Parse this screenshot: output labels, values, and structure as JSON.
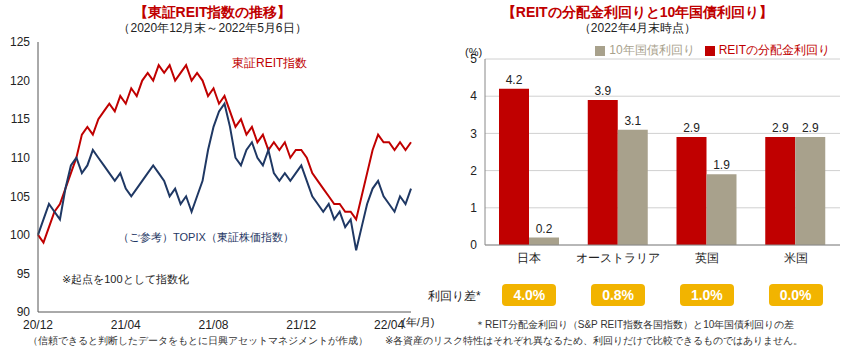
{
  "chart_data": [
    {
      "type": "line",
      "title": "【東証REIT指数の推移】",
      "subtitle": "（2020年12月末～2022年5月6日）",
      "x_label": "(年/月)",
      "categories": [
        "20/12",
        null,
        null,
        null,
        null,
        null,
        null,
        null,
        null,
        null,
        null,
        null,
        null,
        null,
        null,
        null,
        "21/04",
        null,
        null,
        null,
        null,
        null,
        null,
        null,
        null,
        null,
        null,
        null,
        null,
        null,
        null,
        null,
        "21/08",
        null,
        null,
        null,
        null,
        null,
        null,
        null,
        null,
        null,
        null,
        null,
        null,
        null,
        null,
        null,
        "21/12",
        null,
        null,
        null,
        null,
        null,
        null,
        null,
        null,
        null,
        null,
        null,
        null,
        null,
        null,
        null,
        "22/04",
        null,
        null,
        null,
        null
      ],
      "series": [
        {
          "name": "東証REIT指数",
          "color": "#c00000",
          "values": [
            100,
            99,
            101,
            103,
            104,
            106,
            108,
            110,
            113,
            114,
            113,
            115,
            116,
            117,
            116,
            118,
            117,
            119,
            118,
            120,
            121,
            120,
            122,
            121,
            122,
            120,
            121,
            122,
            120,
            121,
            120,
            118,
            119,
            117,
            118,
            116,
            114,
            115,
            113,
            114,
            112,
            113,
            111,
            112,
            111,
            112,
            110,
            111,
            111,
            110,
            108,
            107,
            106,
            105,
            104,
            104,
            103,
            103,
            102,
            105,
            108,
            111,
            113,
            112,
            112,
            111,
            112,
            111,
            112
          ]
        },
        {
          "name": "（ご参考）TOPIX（東証株価指数）",
          "color": "#1f3864",
          "values": [
            100,
            102,
            104,
            103,
            102,
            106,
            109,
            110,
            108,
            109,
            111,
            110,
            109,
            108,
            107,
            108,
            106,
            105,
            106,
            107,
            108,
            109,
            108,
            107,
            105,
            106,
            104,
            105,
            103,
            105,
            107,
            111,
            114,
            116,
            117,
            114,
            110,
            109,
            111,
            112,
            110,
            109,
            111,
            108,
            107,
            108,
            107,
            108,
            109,
            107,
            105,
            104,
            103,
            104,
            102,
            103,
            101,
            102,
            98,
            101,
            104,
            106,
            107,
            105,
            104,
            103,
            105,
            104,
            106
          ]
        }
      ],
      "ylim": [
        90,
        125
      ],
      "yticks": [
        90,
        95,
        100,
        105,
        110,
        115,
        120,
        125
      ],
      "grid": false,
      "annotations": [
        "※起点を100として指数化"
      ],
      "source": "（信頼できると判断したデータをもとに日興アセットマネジメントが作成）"
    },
    {
      "type": "bar",
      "title": "【REITの分配金利回りと10年国債利回り】",
      "subtitle": "（2022年4月末時点）",
      "y_label": "(%)",
      "categories": [
        "日本",
        "オーストラリア",
        "英国",
        "米国"
      ],
      "series": [
        {
          "name": "REITの分配金利回り",
          "color": "#c00000",
          "values": [
            4.2,
            3.9,
            2.9,
            2.9
          ]
        },
        {
          "name": "10年国債利回り",
          "color": "#a8a18c",
          "values": [
            0.2,
            3.1,
            1.9,
            2.9
          ]
        }
      ],
      "ylim": [
        0,
        5
      ],
      "yticks": [
        0,
        1,
        2,
        3,
        4,
        5
      ],
      "grid": true,
      "legend": "top-right",
      "data_labels": true,
      "yield_spread": {
        "label": "利回り差*",
        "values": [
          4.0,
          0.8,
          1.0,
          0.0
        ],
        "value_labels": [
          "4.0%",
          "0.8%",
          "1.0%",
          "0.0%"
        ]
      },
      "notes": [
        "＊REIT分配金利回り（S&P REIT指数各国指数）と10年国債利回りの差",
        "※各資産のリスク特性はそれぞれ異なるため、利回りだけで比較できるものではありません。"
      ]
    }
  ]
}
